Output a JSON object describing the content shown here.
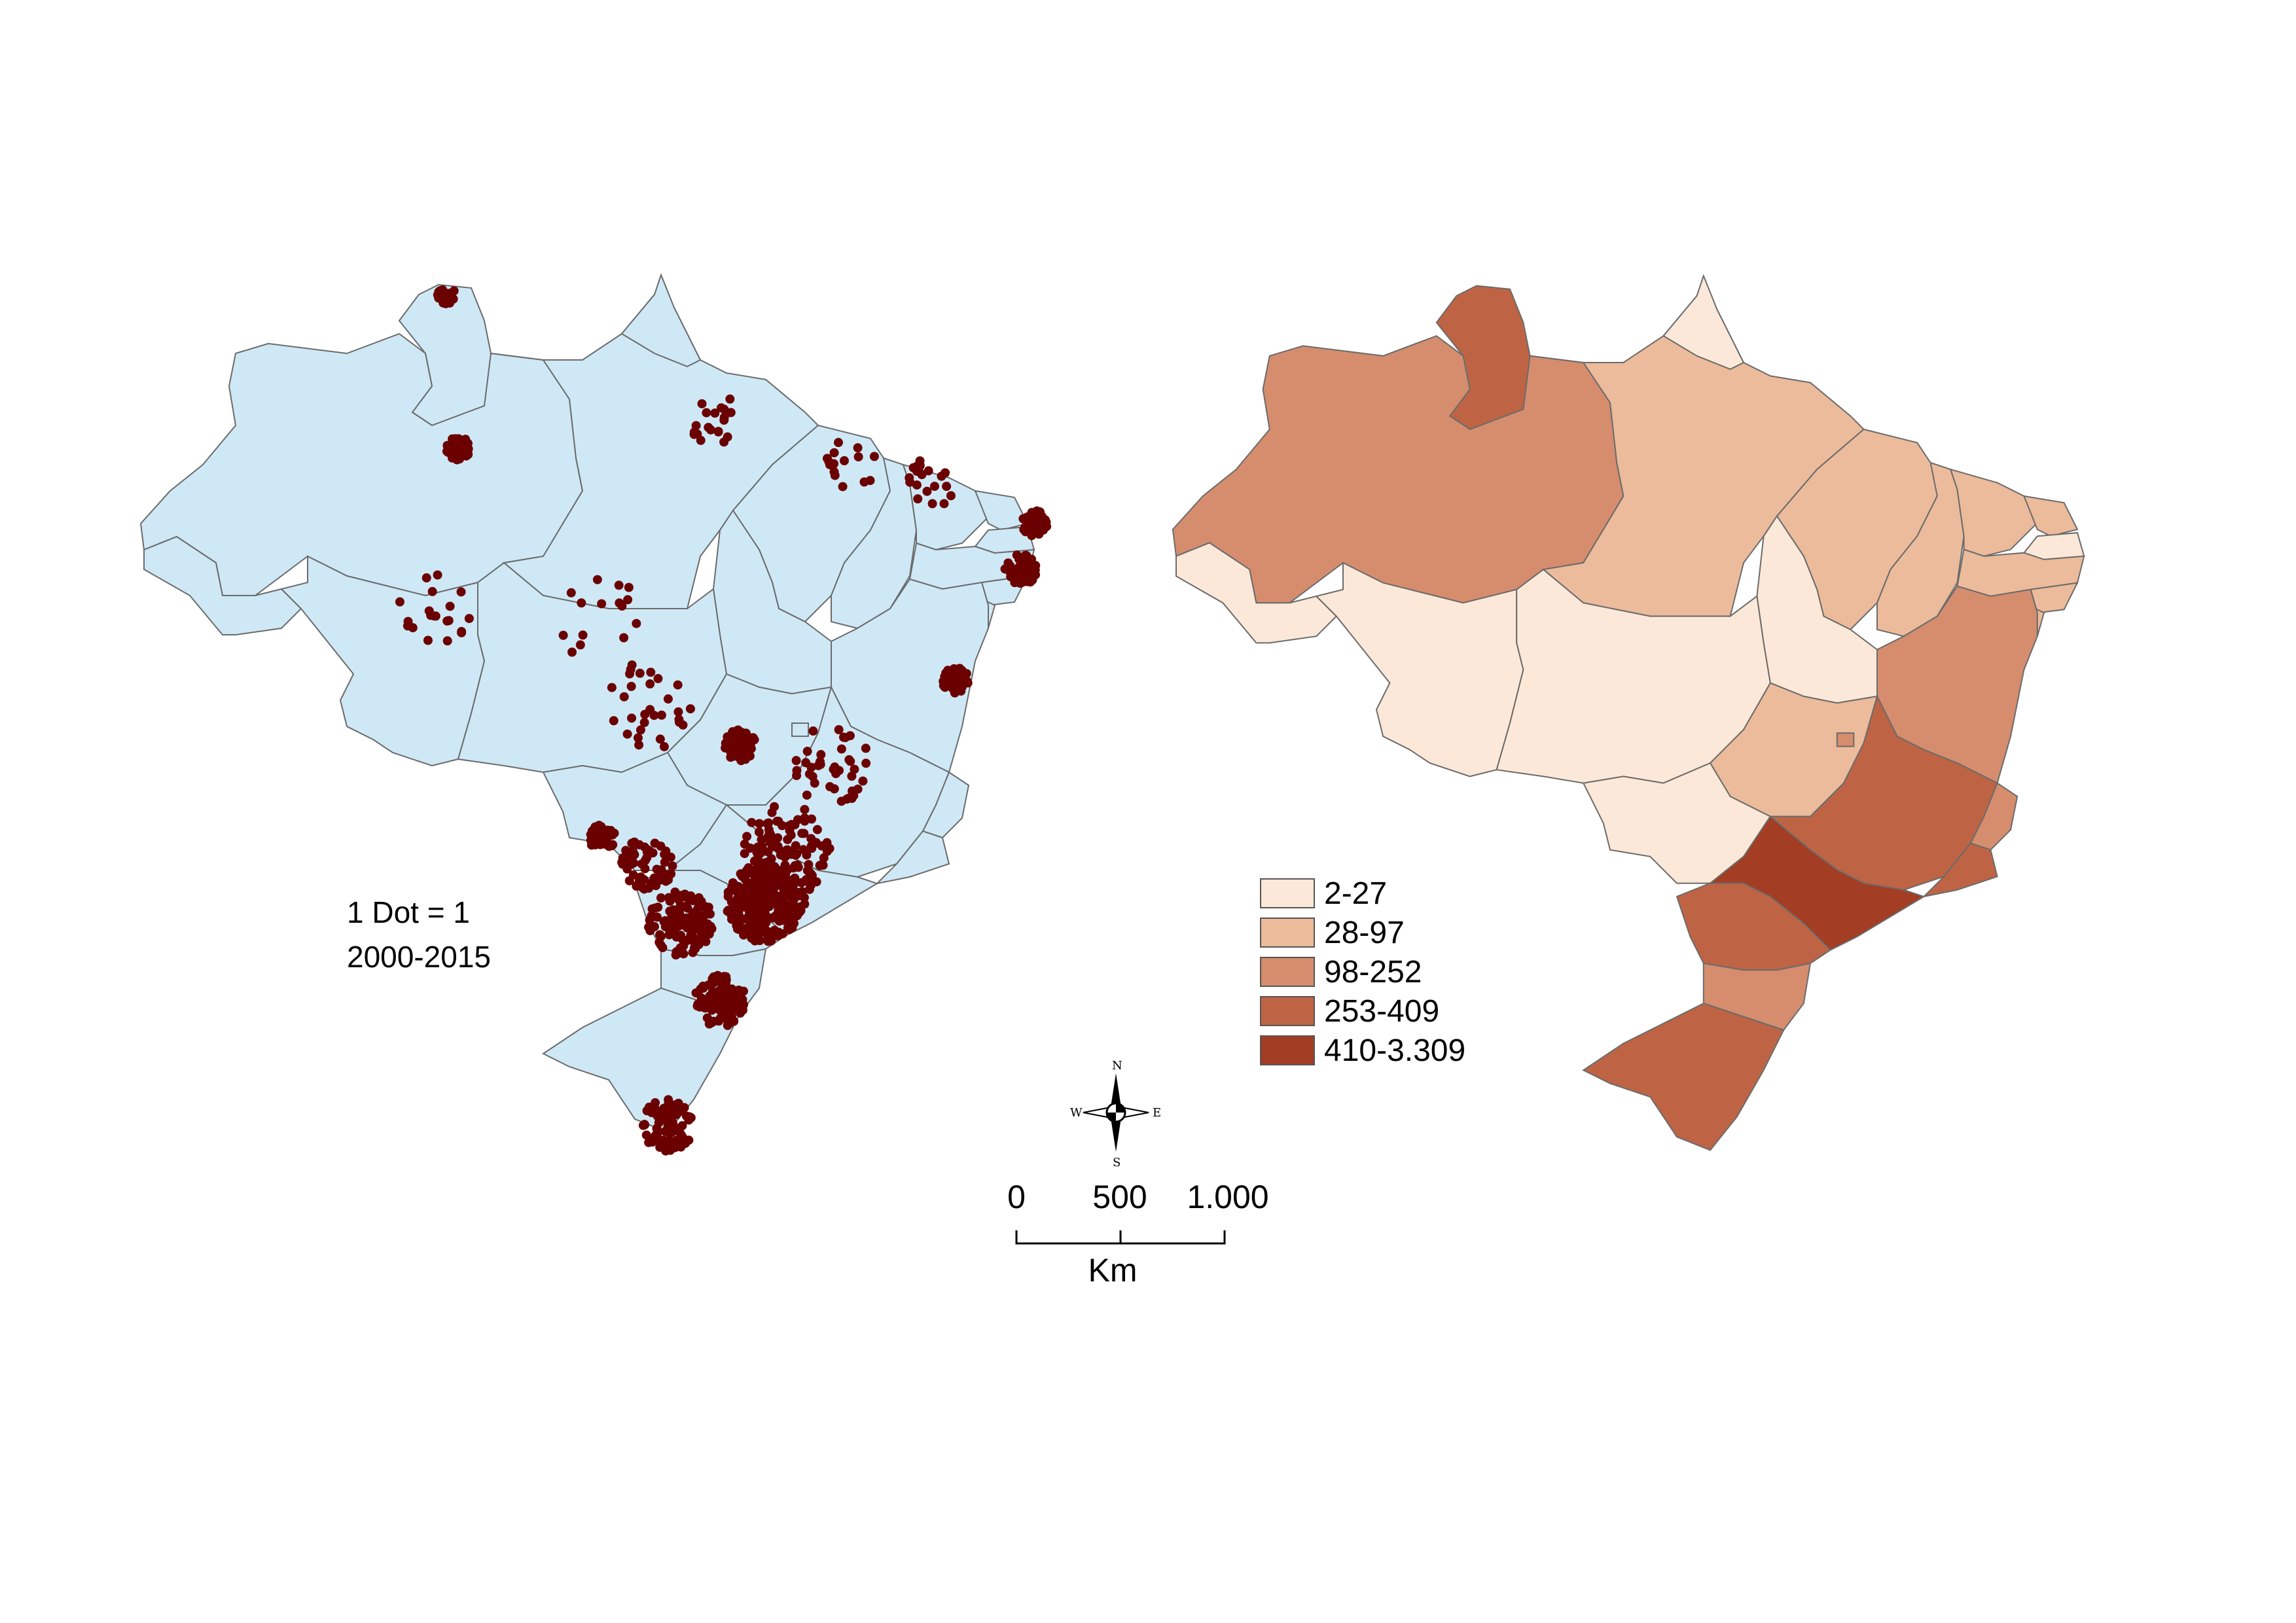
{
  "colors": {
    "dot_map_fill": "#cfe8f6",
    "border": "#6b6b6b",
    "dot": "#6b0000",
    "class_1": "#fbe8d8",
    "class_2": "#ebbb9b",
    "class_3": "#d58d6e",
    "class_4": "#be6444",
    "class_5": "#a33d24"
  },
  "dot_map": {
    "line1": "1 Dot = 1",
    "line2": "2000-2015"
  },
  "legend": [
    {
      "label": "2-27",
      "color": "#fbe8d8"
    },
    {
      "label": "28-97",
      "color": "#ebbb9b"
    },
    {
      "label": "98-252",
      "color": "#d58d6e"
    },
    {
      "label": "253-409",
      "color": "#be6444"
    },
    {
      "label": "410-3.309",
      "color": "#a33d24"
    }
  ],
  "scale_bar": {
    "ticks": [
      "0",
      "500",
      "1.000"
    ],
    "unit": "Km"
  },
  "compass": {
    "n": "N",
    "s": "S",
    "e": "E",
    "w": "W"
  },
  "choropleth_classes": {
    "AC": 1,
    "AM": 3,
    "RR": 4,
    "PA": 2,
    "AP": 1,
    "MA": 2,
    "TO": 1,
    "PI": 2,
    "CE": 2,
    "RN": 2,
    "PB": 1,
    "PE": 2,
    "AL": 2,
    "SE": 2,
    "BA": 3,
    "RO": 1,
    "MT": 1,
    "GO": 2,
    "DF": 3,
    "MG": 4,
    "ES": 3,
    "RJ": 4,
    "SP": 5,
    "MS": 1,
    "PR": 4,
    "SC": 3,
    "RS": 4
  }
}
